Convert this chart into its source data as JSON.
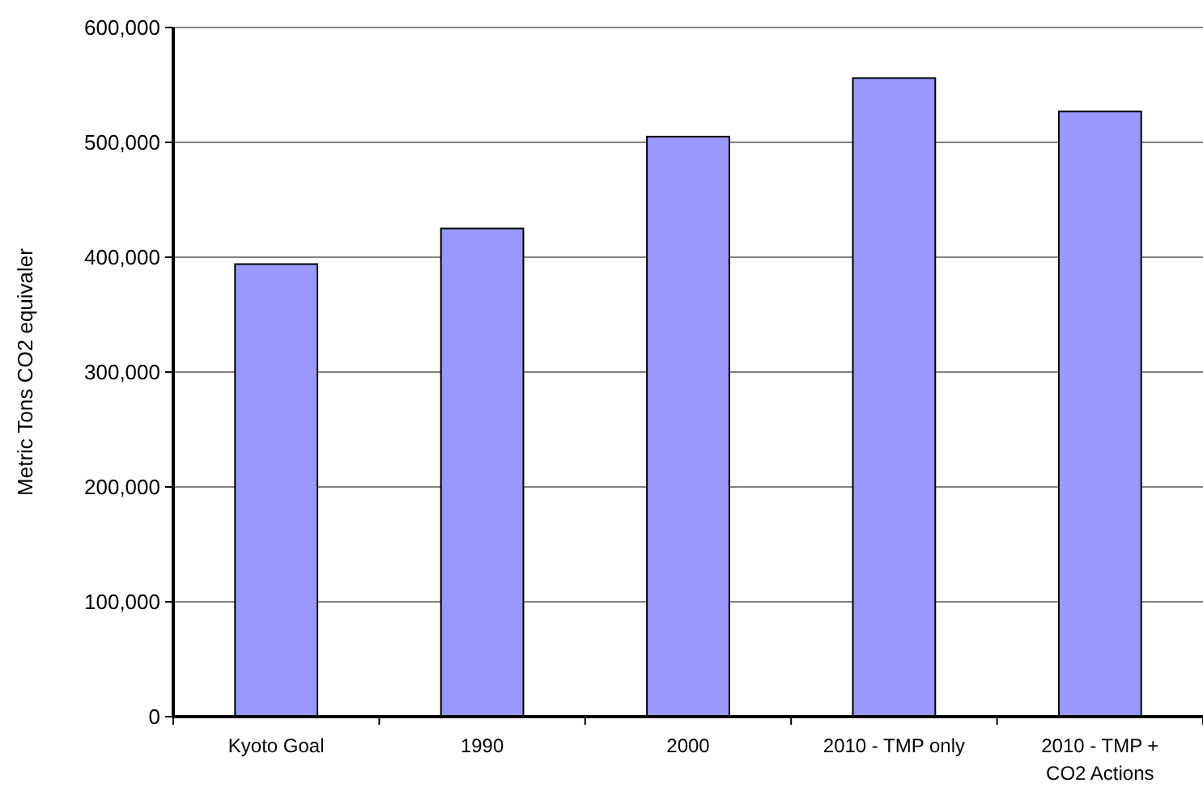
{
  "chart_data": {
    "type": "bar",
    "ylabel": "Metric Tons CO2 equivaler",
    "categories": [
      "Kyoto Goal",
      "1990",
      "2000",
      "2010 - TMP only",
      "2010 - TMP + CO2 Actions"
    ],
    "values": [
      394000,
      425000,
      505000,
      556000,
      527000
    ],
    "color": "#9999ff",
    "ylim": [
      0,
      600000
    ],
    "yticks": [
      {
        "value": 0,
        "label": "0"
      },
      {
        "value": 100000,
        "label": "100,000"
      },
      {
        "value": 200000,
        "label": "200,000"
      },
      {
        "value": 300000,
        "label": "300,000"
      },
      {
        "value": 400000,
        "label": "400,000"
      },
      {
        "value": 500000,
        "label": "500,000"
      },
      {
        "value": 600000,
        "label": "600,000"
      }
    ],
    "grid": "y"
  }
}
